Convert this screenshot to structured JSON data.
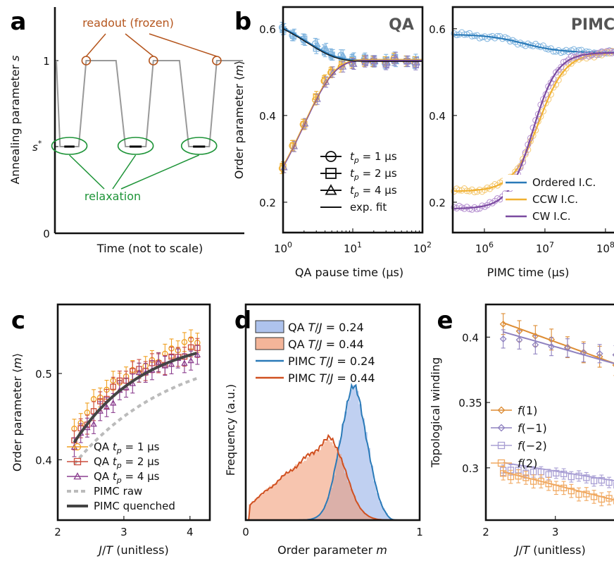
{
  "colors": {
    "orange": "#f0a020",
    "red": "#cc4b3b",
    "purple": "#8b3e8f",
    "blue": "#2a7ab8",
    "lightblue": "#7fb4df",
    "gold": "#f0b030",
    "violet": "#7a4aa0",
    "ochre": "#dd8c33",
    "lavender": "#8f82c0",
    "grey": "#999999",
    "darkgrey": "#444444",
    "green": "#1e9438",
    "brown": "#b5561e"
  },
  "panel_labels": [
    "a",
    "b",
    "c",
    "d",
    "e"
  ],
  "chart_data": [
    {
      "panel": "a",
      "type": "line",
      "ylabel": "Annealing parameter s",
      "xlabel": "Time (not to scale)",
      "y_ticks": [
        "0",
        "s*",
        "1"
      ],
      "annotations": [
        "readout (frozen)",
        "relaxation"
      ],
      "series": [
        {
          "values_description_free": true,
          "y": [
            1,
            0.355,
            0.355,
            1,
            1,
            0.355,
            0.355,
            1,
            1,
            0.355,
            0.355,
            1,
            1
          ],
          "x": [
            0,
            0.02,
            0.12,
            0.16,
            0.32,
            0.37,
            0.48,
            0.52,
            0.66,
            0.71,
            0.82,
            0.86,
            1.0
          ]
        }
      ]
    },
    {
      "panel": "b-left",
      "type": "scatter",
      "title": "QA",
      "xlabel": "QA pause time (μs)",
      "ylabel": "Order parameter ⟨m⟩",
      "xscale": "log",
      "xlim": [
        1,
        100
      ],
      "ylim": [
        0.13,
        0.65
      ],
      "x_ticks": [
        "10^0",
        "10^1",
        "10^2"
      ],
      "y_ticks": [
        0.2,
        0.4,
        0.6
      ],
      "legend": [
        "t_p = 1 μs",
        "t_p = 2 μs",
        "t_p = 4 μs",
        "exp. fit"
      ],
      "series": [
        {
          "x": [
            1,
            1.4,
            2,
            3,
            4,
            5,
            7,
            10,
            15,
            20,
            30,
            40,
            60,
            80
          ],
          "y": [
            0.6,
            0.585,
            0.575,
            0.56,
            0.55,
            0.54,
            0.535,
            0.53,
            0.53,
            0.525,
            0.525,
            0.53,
            0.525,
            0.525
          ]
        },
        {
          "x": [
            1,
            1.4,
            2,
            3,
            4,
            5,
            7,
            10,
            15,
            20,
            30,
            40,
            60,
            80
          ],
          "y": [
            0.28,
            0.33,
            0.38,
            0.44,
            0.48,
            0.5,
            0.515,
            0.52,
            0.525,
            0.525,
            0.52,
            0.53,
            0.525,
            0.52
          ]
        }
      ]
    },
    {
      "panel": "b-right",
      "type": "scatter",
      "title": "PIMC",
      "xlabel": "PIMC time (μs)",
      "xscale": "log",
      "xlim": [
        300000,
        150000000
      ],
      "ylim": [
        0.13,
        0.65
      ],
      "x_ticks": [
        "10^6",
        "10^7",
        "10^8"
      ],
      "y_ticks": [
        0.2,
        0.4,
        0.6
      ],
      "legend": [
        "Ordered I.C.",
        "CCW I.C.",
        "CW I.C."
      ],
      "series": [
        {
          "name": "Ordered I.C.",
          "x": [
            300000,
            1000000,
            3000000,
            10000000,
            30000000,
            100000000,
            150000000
          ],
          "y": [
            0.585,
            0.582,
            0.57,
            0.55,
            0.545,
            0.545,
            0.545
          ]
        },
        {
          "name": "CCW I.C.",
          "x": [
            300000,
            1000000,
            2000000,
            4000000,
            7000000,
            10000000,
            15000000,
            25000000,
            50000000,
            150000000
          ],
          "y": [
            0.23,
            0.24,
            0.26,
            0.32,
            0.41,
            0.46,
            0.51,
            0.535,
            0.545,
            0.545
          ]
        },
        {
          "name": "CW I.C.",
          "x": [
            300000,
            1000000,
            2000000,
            4000000,
            7000000,
            10000000,
            15000000,
            25000000,
            50000000,
            150000000
          ],
          "y": [
            0.19,
            0.21,
            0.25,
            0.34,
            0.44,
            0.49,
            0.525,
            0.54,
            0.545,
            0.545
          ]
        }
      ]
    },
    {
      "panel": "c",
      "type": "line",
      "xlabel": "J/T (unitless)",
      "ylabel": "Order parameter ⟨m⟩",
      "xlim": [
        2,
        4.3
      ],
      "ylim": [
        0.33,
        0.58
      ],
      "x_ticks": [
        2,
        3,
        4
      ],
      "y_ticks": [
        0.4,
        0.5
      ],
      "legend": [
        "QA t_p = 1 μs",
        "QA t_p = 2 μs",
        "QA t_p = 4 μs",
        "PIMC raw",
        "PIMC quenched"
      ],
      "series": [
        {
          "name": "PIMC quenched",
          "x": [
            2.25,
            2.5,
            2.75,
            3.0,
            3.25,
            3.5,
            3.75,
            4.0,
            4.1
          ],
          "y": [
            0.42,
            0.448,
            0.47,
            0.49,
            0.505,
            0.518,
            0.53,
            0.54,
            0.543
          ]
        },
        {
          "name": "PIMC raw",
          "x": [
            2.25,
            2.5,
            2.75,
            3.0,
            3.25,
            3.5,
            3.75,
            4.0,
            4.1
          ],
          "y": [
            0.395,
            0.418,
            0.44,
            0.46,
            0.478,
            0.492,
            0.505,
            0.515,
            0.52
          ]
        }
      ]
    },
    {
      "panel": "d",
      "type": "area",
      "xlabel": "Order parameter m",
      "ylabel": "Frequency (a.u.)",
      "xlim": [
        0,
        1
      ],
      "x_ticks": [
        0,
        1
      ],
      "legend": [
        "QA T/J = 0.24",
        "QA T/J = 0.44",
        "PIMC T/J = 0.24",
        "PIMC T/J = 0.44"
      ]
    },
    {
      "panel": "e",
      "type": "scatter",
      "xlabel": "J/T (unitless)",
      "ylabel": "Topological winding",
      "xlim": [
        2,
        4.3
      ],
      "ylim": [
        0.26,
        0.425
      ],
      "x_ticks": [
        2,
        3,
        4
      ],
      "y_ticks": [
        0.3,
        0.35,
        0.4
      ],
      "legend": [
        "f(1)",
        "f(−1)",
        "f(−2)",
        "f(2)"
      ],
      "series": [
        {
          "name": "f(1)",
          "x": [
            2.25,
            2.5,
            2.75,
            3.0,
            3.25,
            3.5,
            3.75,
            4.0,
            4.1
          ],
          "y": [
            0.41,
            0.405,
            0.4,
            0.395,
            0.39,
            0.388,
            0.385,
            0.38,
            0.378
          ]
        },
        {
          "name": "f(−1)",
          "x": [
            2.25,
            2.5,
            2.75,
            3.0,
            3.25,
            3.5,
            3.75,
            4.0,
            4.1
          ],
          "y": [
            0.4,
            0.397,
            0.395,
            0.392,
            0.389,
            0.387,
            0.385,
            0.383,
            0.382
          ]
        },
        {
          "name": "f(−2)",
          "x": [
            2.25,
            2.5,
            2.75,
            3.0,
            3.25,
            3.5,
            3.75,
            4.0,
            4.1
          ],
          "y": [
            0.303,
            0.3,
            0.297,
            0.295,
            0.293,
            0.291,
            0.29,
            0.289,
            0.288
          ]
        },
        {
          "name": "f(2)",
          "x": [
            2.25,
            2.5,
            2.75,
            3.0,
            3.25,
            3.5,
            3.75,
            4.0,
            4.1
          ],
          "y": [
            0.295,
            0.29,
            0.286,
            0.282,
            0.279,
            0.277,
            0.275,
            0.273,
            0.272
          ]
        }
      ]
    }
  ]
}
